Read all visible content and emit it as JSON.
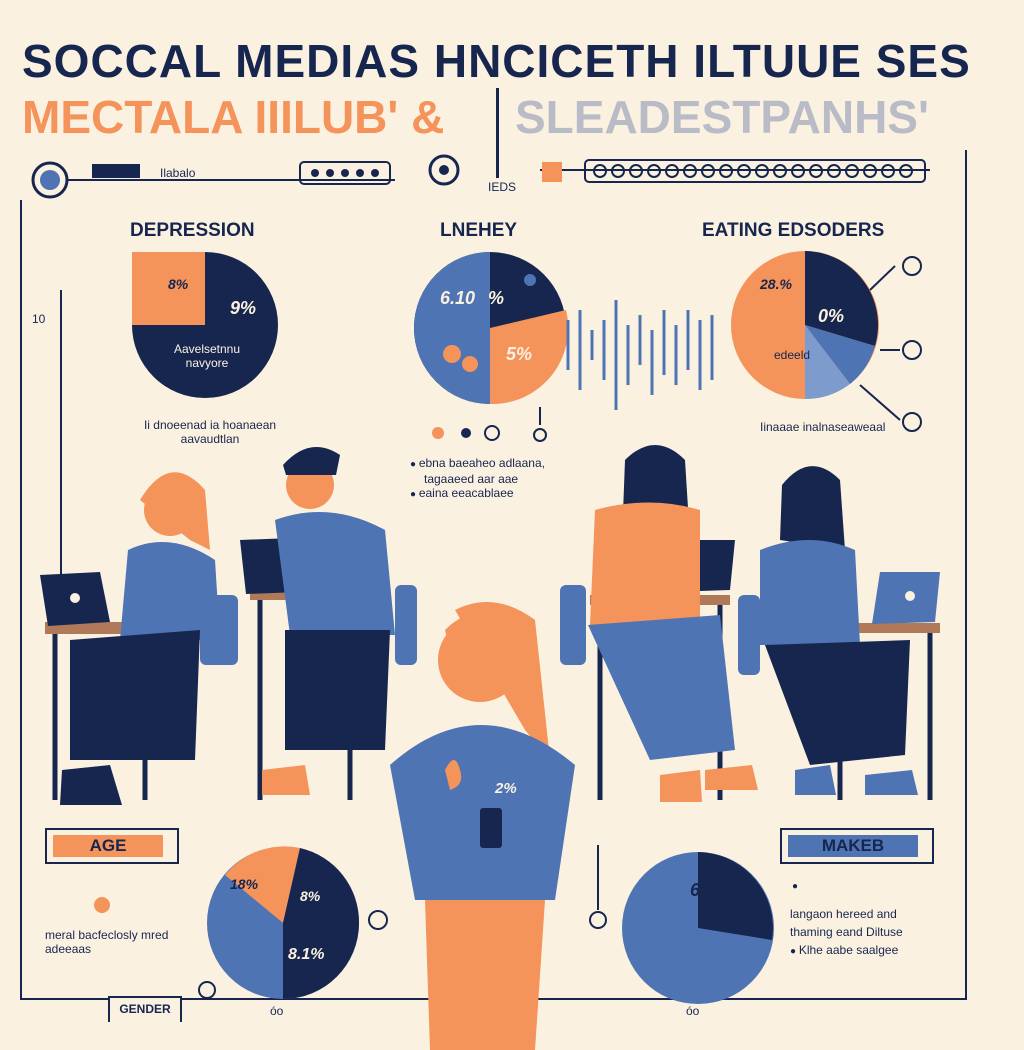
{
  "header": {
    "title_line1": "SOCCAL MEDIAS HNCICETH ILTUUE SES",
    "title_line2a": "MECTALA IIILUB' &",
    "title_line2b": "SLEADESTPANHS'",
    "bar_left_label": "Ilabalo",
    "bar_mid_label": "IEDS"
  },
  "panels": [
    {
      "title": "DEPRESSION",
      "slices_pct": [
        "8%",
        "9%"
      ],
      "caption": "Aavelsetnnu navyore",
      "footer": "Ii dnoeenad ia hoanaean aavaudtlan"
    },
    {
      "title": "LNEHEY",
      "slices_pct": [
        "6.10",
        "%",
        "5%"
      ],
      "notes": [
        "ebna baeaheo adlaana,",
        "tagaaeed aar aae",
        "eaina eeacablaee"
      ]
    },
    {
      "title": "EATING EDSODERS",
      "slices_pct": [
        "28.%",
        "0%"
      ],
      "caption": "edeeld",
      "footer": "Iinaaae inalnaseaweaal"
    }
  ],
  "figure_badge": "2%",
  "bottom_left": {
    "tag": "AGE",
    "slices_pct": [
      "18%",
      "8%",
      "8.1%"
    ],
    "caption": "meral bacfeclosly mred adeeaas",
    "footer_tag": "GENDER"
  },
  "bottom_right": {
    "tag": "MAKEB",
    "slices_pct": [
      "6%"
    ],
    "notes": [
      "langaon hereed and",
      "thaming eand Diltuse",
      "Klhe aabe saalgee"
    ]
  },
  "axis_marks": {
    "left": "10",
    "bottom_a": "óo",
    "bottom_b": "óo"
  },
  "colors": {
    "navy": "#16264f",
    "orange": "#f4935a",
    "blue": "#4e74b3",
    "cream": "#fbf1e1"
  }
}
